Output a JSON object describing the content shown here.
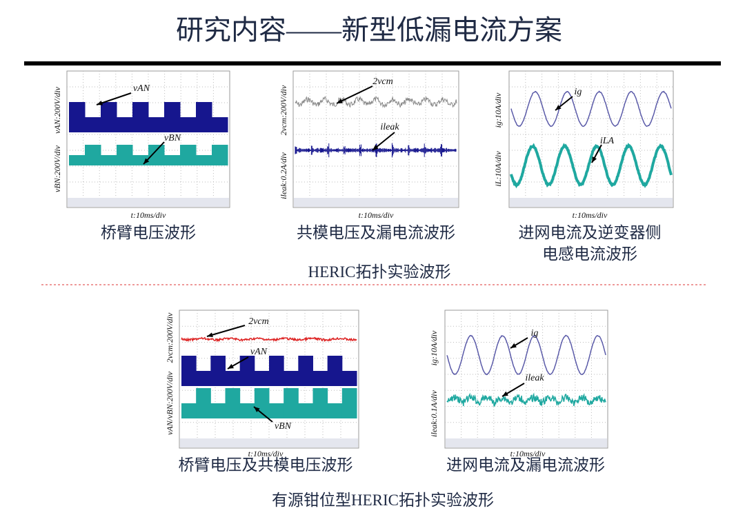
{
  "title": "研究内容——新型低漏电流方案",
  "section1": {
    "caption": "HERIC拓扑实验波形",
    "panels": [
      {
        "ylabels": [
          "vAN:200V/div",
          "vBN:200V/div"
        ],
        "xlabel": "t:10ms/div",
        "annotations": [
          "vAN",
          "vBN"
        ],
        "caption": [
          "桥臂电压波形"
        ]
      },
      {
        "ylabels": [
          "2vcm:200V/div",
          "ileak:0.2A/div"
        ],
        "xlabel": "t:10ms/div",
        "annotations": [
          "2vcm",
          "ileak"
        ],
        "caption": [
          "共模电压及漏电流波形"
        ]
      },
      {
        "ylabels": [
          "ig:10A/div",
          "iL:10A/div"
        ],
        "xlabel": "t:10ms/div",
        "annotations": [
          "ig",
          "iLA"
        ],
        "caption": [
          "进网电流及逆变器侧",
          "电感电流波形"
        ]
      }
    ]
  },
  "section2": {
    "caption": "有源钳位型HERIC拓扑实验波形",
    "panels": [
      {
        "ylabels": [
          "vAN/vBN:200V/div",
          "2vcm:200V/div"
        ],
        "xlabel": "t:10ms/div",
        "annotations": [
          "2vcm",
          "vAN",
          "vBN"
        ],
        "caption": [
          "桥臂电压及共模电压波形"
        ]
      },
      {
        "ylabels": [
          "ig:10A/div",
          "ileak:0.1A/div"
        ],
        "xlabel": "t:10ms/div",
        "annotations": [
          "ig",
          "ileak"
        ],
        "caption": [
          "进网电流及漏电流波形"
        ]
      }
    ]
  }
}
